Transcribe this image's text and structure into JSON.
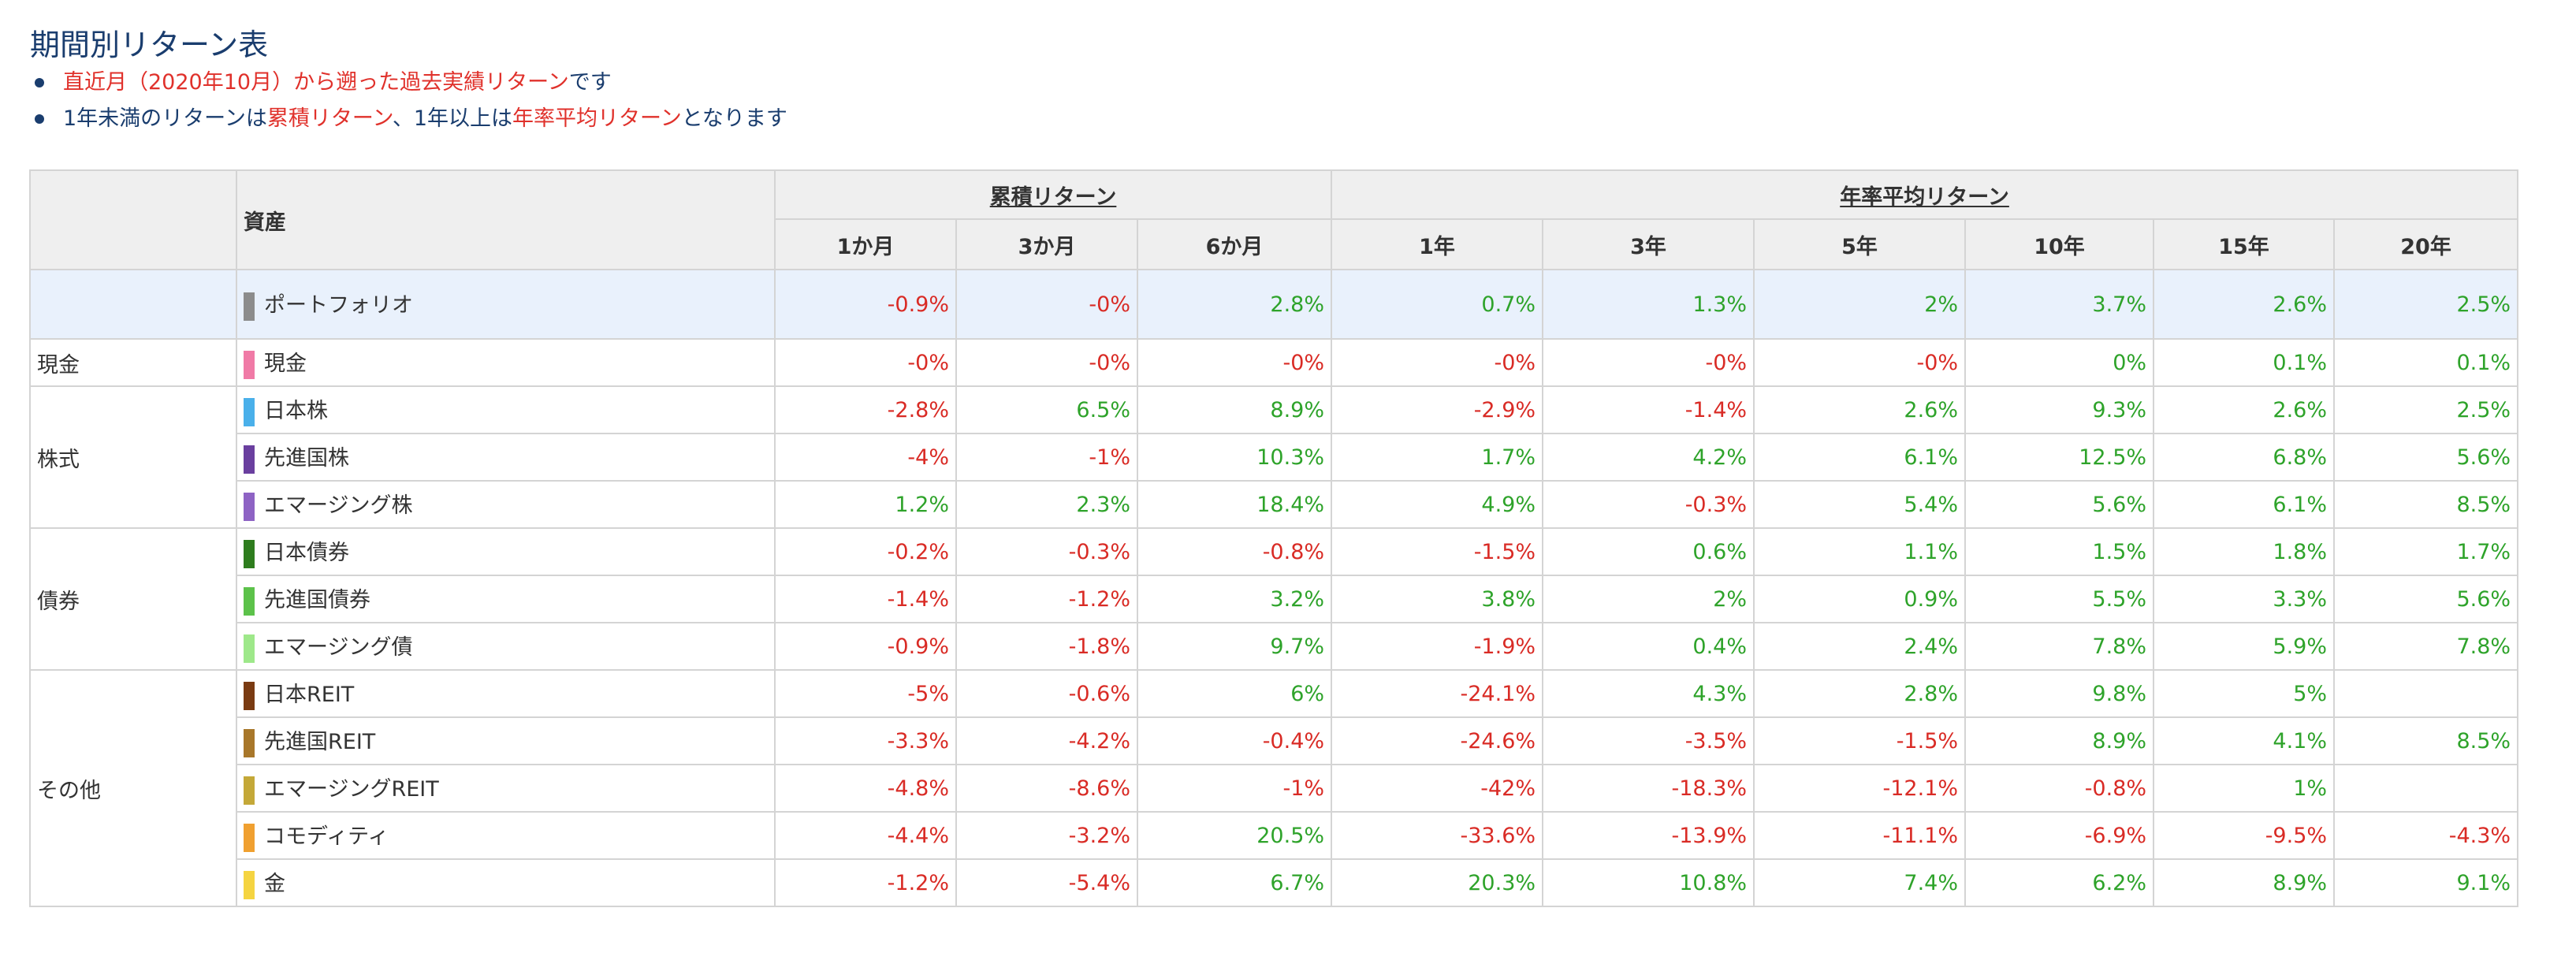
{
  "page_title": "期間別リターン表",
  "notes": [
    [
      {
        "text": "直近月（2020年10月）から遡った過去実績リターン",
        "color": "red"
      },
      {
        "text": "です",
        "color": "navy"
      }
    ],
    [
      {
        "text": "1年未満のリターンは",
        "color": "navy"
      },
      {
        "text": "累積リターン",
        "color": "red"
      },
      {
        "text": "、1年以上は",
        "color": "navy"
      },
      {
        "text": "年率平均リターン",
        "color": "red"
      },
      {
        "text": "となります",
        "color": "navy"
      }
    ]
  ],
  "table": {
    "asset_header": "資産",
    "groups": [
      {
        "label": "累積リターン",
        "span": 3
      },
      {
        "label": "年率平均リターン",
        "span": 6
      }
    ],
    "periods": [
      "1か月",
      "3か月",
      "6か月",
      "1年",
      "3年",
      "5年",
      "10年",
      "15年",
      "20年"
    ],
    "portfolio": {
      "name": "ポートフォリオ",
      "color": "#8c8c8c",
      "values": [
        "-0.9%",
        "-0%",
        "2.8%",
        "0.7%",
        "1.3%",
        "2%",
        "3.7%",
        "2.6%",
        "2.5%"
      ]
    },
    "categories": [
      {
        "label": "現金",
        "rows": [
          {
            "name": "現金",
            "color": "#f07aa6",
            "values": [
              "-0%",
              "-0%",
              "-0%",
              "-0%",
              "-0%",
              "-0%",
              "0%",
              "0.1%",
              "0.1%"
            ]
          }
        ]
      },
      {
        "label": "株式",
        "rows": [
          {
            "name": "日本株",
            "color": "#4ab0ea",
            "values": [
              "-2.8%",
              "6.5%",
              "8.9%",
              "-2.9%",
              "-1.4%",
              "2.6%",
              "9.3%",
              "2.6%",
              "2.5%"
            ]
          },
          {
            "name": "先進国株",
            "color": "#6a3f9f",
            "values": [
              "-4%",
              "-1%",
              "10.3%",
              "1.7%",
              "4.2%",
              "6.1%",
              "12.5%",
              "6.8%",
              "5.6%"
            ]
          },
          {
            "name": "エマージング株",
            "color": "#8e63c4",
            "values": [
              "1.2%",
              "2.3%",
              "18.4%",
              "4.9%",
              "-0.3%",
              "5.4%",
              "5.6%",
              "6.1%",
              "8.5%"
            ]
          }
        ]
      },
      {
        "label": "債券",
        "rows": [
          {
            "name": "日本債券",
            "color": "#2e7d1e",
            "values": [
              "-0.2%",
              "-0.3%",
              "-0.8%",
              "-1.5%",
              "0.6%",
              "1.1%",
              "1.5%",
              "1.8%",
              "1.7%"
            ]
          },
          {
            "name": "先進国債券",
            "color": "#5cc24a",
            "values": [
              "-1.4%",
              "-1.2%",
              "3.2%",
              "3.8%",
              "2%",
              "0.9%",
              "5.5%",
              "3.3%",
              "5.6%"
            ]
          },
          {
            "name": "エマージング債",
            "color": "#9ee88a",
            "values": [
              "-0.9%",
              "-1.8%",
              "9.7%",
              "-1.9%",
              "0.4%",
              "2.4%",
              "7.8%",
              "5.9%",
              "7.8%"
            ]
          }
        ]
      },
      {
        "label": "その他",
        "rows": [
          {
            "name": "日本REIT",
            "color": "#7a3b12",
            "values": [
              "-5%",
              "-0.6%",
              "6%",
              "-24.1%",
              "4.3%",
              "2.8%",
              "9.8%",
              "5%",
              ""
            ]
          },
          {
            "name": "先進国REIT",
            "color": "#a8772a",
            "values": [
              "-3.3%",
              "-4.2%",
              "-0.4%",
              "-24.6%",
              "-3.5%",
              "-1.5%",
              "8.9%",
              "4.1%",
              "8.5%"
            ]
          },
          {
            "name": "エマージングREIT",
            "color": "#c4a838",
            "values": [
              "-4.8%",
              "-8.6%",
              "-1%",
              "-42%",
              "-18.3%",
              "-12.1%",
              "-0.8%",
              "1%",
              ""
            ]
          },
          {
            "name": "コモディティ",
            "color": "#f0a030",
            "values": [
              "-4.4%",
              "-3.2%",
              "20.5%",
              "-33.6%",
              "-13.9%",
              "-11.1%",
              "-6.9%",
              "-9.5%",
              "-4.3%"
            ]
          },
          {
            "name": "金",
            "color": "#f5d441",
            "values": [
              "-1.2%",
              "-5.4%",
              "6.7%",
              "20.3%",
              "10.8%",
              "7.4%",
              "6.2%",
              "8.9%",
              "9.1%"
            ]
          }
        ]
      }
    ]
  }
}
